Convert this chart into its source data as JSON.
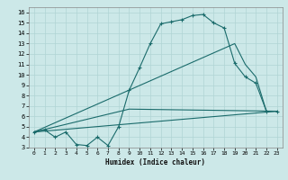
{
  "title": "",
  "xlabel": "Humidex (Indice chaleur)",
  "bg_color": "#cce8e8",
  "grid_color": "#b0d4d4",
  "line_color": "#1a6b6b",
  "xlim": [
    -0.5,
    23.5
  ],
  "ylim": [
    3,
    16.5
  ],
  "xticks": [
    0,
    1,
    2,
    3,
    4,
    5,
    6,
    7,
    8,
    9,
    10,
    11,
    12,
    13,
    14,
    15,
    16,
    17,
    18,
    19,
    20,
    21,
    22,
    23
  ],
  "yticks": [
    3,
    4,
    5,
    6,
    7,
    8,
    9,
    10,
    11,
    12,
    13,
    14,
    15,
    16
  ],
  "line1_x": [
    0,
    1,
    2,
    3,
    4,
    5,
    6,
    7,
    8,
    9,
    10,
    11,
    12,
    13,
    14,
    15,
    16,
    17,
    18,
    19,
    20,
    21,
    22,
    23
  ],
  "line1_y": [
    4.5,
    4.7,
    4.0,
    4.5,
    3.3,
    3.2,
    4.0,
    3.2,
    5.0,
    8.5,
    10.7,
    13.0,
    14.9,
    15.1,
    15.3,
    15.7,
    15.8,
    15.0,
    14.5,
    11.1,
    9.8,
    9.2,
    6.5,
    6.5
  ],
  "line2_x": [
    0,
    19,
    20,
    21,
    22,
    23
  ],
  "line2_y": [
    4.5,
    13.0,
    11.0,
    9.8,
    6.5,
    6.5
  ],
  "line3_x": [
    0,
    23
  ],
  "line3_y": [
    4.5,
    6.5
  ],
  "line4_x": [
    0,
    9,
    23
  ],
  "line4_y": [
    4.5,
    6.7,
    6.5
  ]
}
